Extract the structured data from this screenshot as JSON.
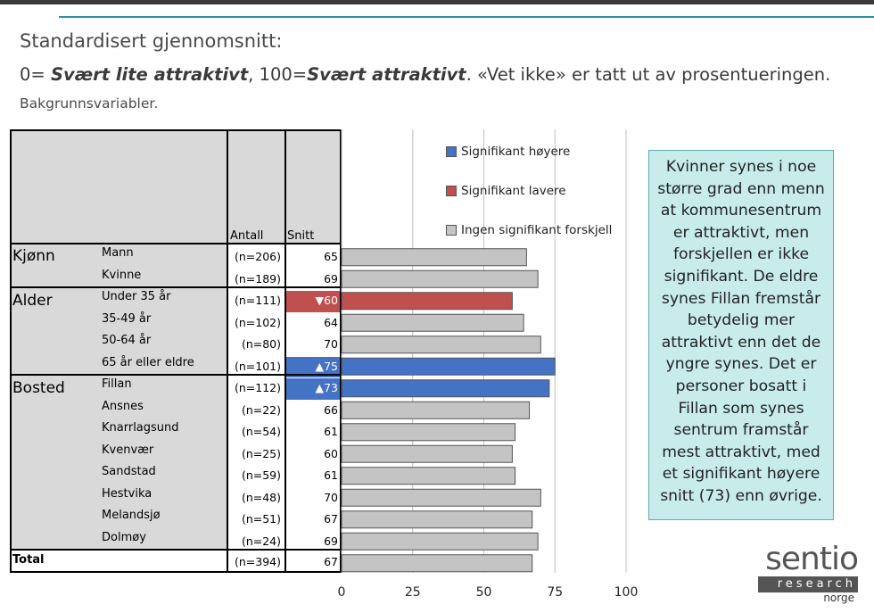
{
  "header": {
    "title": "Standardisert gjennomsnitt:",
    "subtitle_prefix": "0= ",
    "subtitle_low": "Svært lite attraktivt",
    "subtitle_mid": ", 100=",
    "subtitle_high": "Svært attraktivt",
    "subtitle_suffix": ". «Vet ikke» er tatt ut av prosentueringen.",
    "caption": "Bakgrunnsvariabler."
  },
  "table": {
    "col_antall": "Antall",
    "col_snitt": "Snitt",
    "groups": [
      "Kjønn",
      "Alder",
      "Bosted"
    ],
    "rows": [
      {
        "label": "Mann",
        "n": "(n=206)",
        "snitt": "65"
      },
      {
        "label": "Kvinne",
        "n": "(n=189)",
        "snitt": "69"
      },
      {
        "label": "Under 35 år",
        "n": "(n=111)",
        "snitt": "▼60"
      },
      {
        "label": "35-49 år",
        "n": "(n=102)",
        "snitt": "64"
      },
      {
        "label": "50-64 år",
        "n": "(n=80)",
        "snitt": "70"
      },
      {
        "label": "65 år eller eldre",
        "n": "(n=101)",
        "snitt": "▲75"
      },
      {
        "label": "Fillan",
        "n": "(n=112)",
        "snitt": "▲73"
      },
      {
        "label": "Ansnes",
        "n": "(n=22)",
        "snitt": "66"
      },
      {
        "label": "Knarrlagsund",
        "n": "(n=54)",
        "snitt": "61"
      },
      {
        "label": "Kvenvær",
        "n": "(n=25)",
        "snitt": "60"
      },
      {
        "label": "Sandstad",
        "n": "(n=59)",
        "snitt": "61"
      },
      {
        "label": "Hestvika",
        "n": "(n=48)",
        "snitt": "70"
      },
      {
        "label": "Melandsjø",
        "n": "(n=51)",
        "snitt": "67"
      },
      {
        "label": "Dolmøy",
        "n": "(n=24)",
        "snitt": "69"
      }
    ],
    "total": {
      "label": "Total",
      "n": "(n=394)",
      "snitt": "67"
    }
  },
  "legend": {
    "higher": "Signifikant høyere",
    "lower": "Signifikant lavere",
    "none": "Ingen signifikant forskjell"
  },
  "colors": {
    "higher": "#4472c4",
    "lower": "#c0504d",
    "none": "#c4c4c4"
  },
  "chart_data": {
    "type": "bar",
    "orientation": "horizontal",
    "categories": [
      "Mann",
      "Kvinne",
      "Under 35 år",
      "35-49 år",
      "50-64 år",
      "65 år eller eldre",
      "Fillan",
      "Ansnes",
      "Knarrlagsund",
      "Kvenvær",
      "Sandstad",
      "Hestvika",
      "Melandsjø",
      "Dolmøy",
      "Total"
    ],
    "values": [
      65,
      69,
      60,
      64,
      70,
      75,
      73,
      66,
      61,
      60,
      61,
      70,
      67,
      69,
      67
    ],
    "significance": [
      "none",
      "none",
      "lower",
      "none",
      "none",
      "higher",
      "higher",
      "none",
      "none",
      "none",
      "none",
      "none",
      "none",
      "none",
      "none"
    ],
    "xlim": [
      0,
      100
    ],
    "xticks": [
      0,
      25,
      50,
      75,
      100
    ]
  },
  "note": {
    "text": "Kvinner synes i noe større grad enn menn at kommunesentrum er attraktivt, men forskjellen er ikke signifikant. De eldre synes Fillan fremstår betydelig mer attraktivt enn det de yngre synes. Det er personer bosatt i Fillan som synes sentrum framstår mest attraktivt, med et signifikant høyere snitt  (73) enn øvrige."
  },
  "logo": {
    "main": "sentio",
    "bar": "research",
    "sub": "norge"
  }
}
